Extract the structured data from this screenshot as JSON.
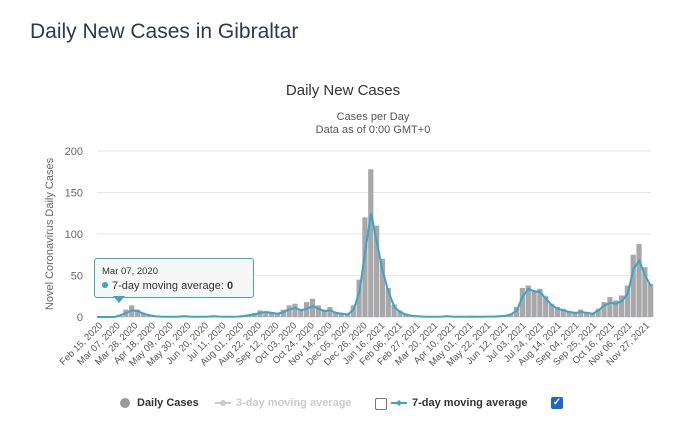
{
  "page_title": "Daily New Cases in Gibraltar",
  "chart_data": {
    "type": "bar",
    "title": "Daily New Cases",
    "subtitle_1": "Cases per Day",
    "subtitle_2": "Data as of 0:00 GMT+0",
    "ylabel": "Novel Coronavirus Daily Cases",
    "xlabel": "",
    "ylim": [
      0,
      200
    ],
    "yticks": [
      "0",
      "50",
      "100",
      "150",
      "200"
    ],
    "grid": true,
    "x_start": "Feb 15, 2020",
    "x_interval_days": 7,
    "xtick_labels": [
      "Feb 15, 2020",
      "Mar 07, 2020",
      "Mar 28, 2020",
      "Apr 18, 2020",
      "May 09, 2020",
      "May 30, 2020",
      "Jun 20, 2020",
      "Jul 11, 2020",
      "Aug 01, 2020",
      "Aug 22, 2020",
      "Sep 12, 2020",
      "Oct 03, 2020",
      "Oct 24, 2020",
      "Nov 14, 2020",
      "Dec 05, 2020",
      "Dec 26, 2020",
      "Jan 16, 2021",
      "Feb 06, 2021",
      "Feb 27, 2021",
      "Mar 20, 2021",
      "Apr 10, 2021",
      "May 01, 2021",
      "May 22, 2021",
      "Jun 12, 2021",
      "Jul 03, 2021",
      "Jul 24, 2021",
      "Aug 14, 2021",
      "Sep 04, 2021",
      "Sep 25, 2021",
      "Oct 16, 2021",
      "Nov 06, 2021",
      "Nov 27, 2021"
    ],
    "series": [
      {
        "name": "Daily Cases",
        "color": "#a8a8a8",
        "values": [
          0,
          0,
          0,
          0,
          3,
          9,
          14,
          9,
          5,
          2,
          1,
          1,
          0,
          0,
          1,
          2,
          1,
          0,
          0,
          1,
          2,
          1,
          0,
          0,
          1,
          2,
          3,
          5,
          8,
          7,
          6,
          5,
          9,
          14,
          16,
          10,
          18,
          22,
          14,
          9,
          12,
          6,
          5,
          4,
          14,
          45,
          120,
          178,
          110,
          70,
          35,
          15,
          8,
          4,
          2,
          1,
          1,
          0,
          0,
          1,
          2,
          1,
          0,
          0,
          1,
          0,
          0,
          1,
          0,
          1,
          2,
          4,
          12,
          35,
          38,
          32,
          34,
          25,
          16,
          12,
          10,
          7,
          6,
          9,
          6,
          5,
          10,
          18,
          24,
          20,
          26,
          38,
          75,
          88,
          60,
          40
        ]
      },
      {
        "name": "3-day moving average",
        "color": "#cccccc",
        "visible": false,
        "values": []
      },
      {
        "name": "7-day moving average",
        "color": "#3aa4c9",
        "visible": true,
        "values": [
          0,
          0,
          0,
          0,
          2,
          5,
          8,
          7,
          4,
          2,
          1,
          0.5,
          0.3,
          0.2,
          0.5,
          1,
          0.5,
          0.3,
          0.2,
          0.5,
          1,
          0.5,
          0.3,
          0.2,
          0.5,
          1,
          2,
          3,
          5,
          6,
          5,
          4,
          6,
          9,
          11,
          8,
          10,
          13,
          10,
          7,
          8,
          5,
          4,
          3,
          9,
          30,
          80,
          125,
          90,
          55,
          30,
          12,
          6,
          3,
          1.5,
          1,
          0.5,
          0.3,
          0.3,
          0.5,
          1,
          0.5,
          0.3,
          0.3,
          0.5,
          0.3,
          0.3,
          0.5,
          0.5,
          1,
          1.5,
          3,
          8,
          25,
          34,
          31,
          30,
          22,
          14,
          10,
          8,
          6,
          5,
          6,
          5,
          4,
          8,
          14,
          17,
          16,
          19,
          28,
          58,
          68,
          50,
          37
        ]
      }
    ],
    "legend_position": "bottom",
    "tooltip": {
      "date": "Mar 07, 2020",
      "series": "7-day moving average",
      "value": "0"
    }
  },
  "legend": {
    "daily_cases": "Daily Cases",
    "three_day": "3-day moving average",
    "seven_day": "7-day moving average",
    "three_day_checked": false,
    "seven_day_checked": true
  },
  "tooltip": {
    "date": "Mar 07, 2020",
    "label": "7-day moving average: ",
    "value": "0"
  }
}
